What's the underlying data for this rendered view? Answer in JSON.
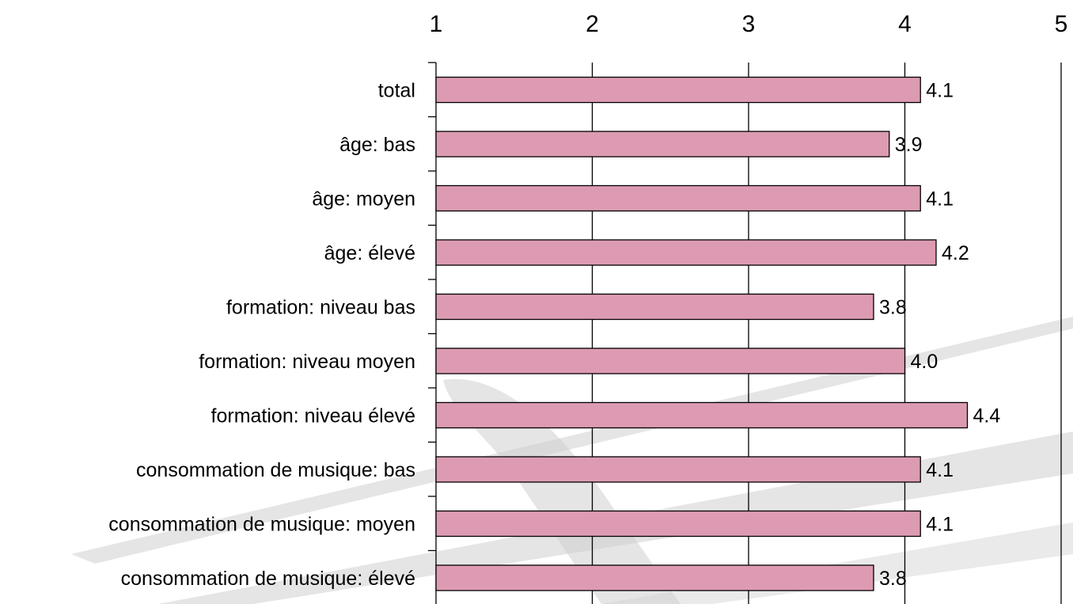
{
  "chart_data": {
    "type": "bar",
    "orientation": "horizontal",
    "title": "",
    "xlabel": "",
    "ylabel": "",
    "xlim": [
      1,
      5
    ],
    "x_ticks": [
      "1",
      "2",
      "3",
      "4",
      "5"
    ],
    "x_axis_position": "top",
    "grid": true,
    "categories": [
      "total",
      "âge: bas",
      "âge: moyen",
      "âge: élevé",
      "formation: niveau bas",
      "formation: niveau moyen",
      "formation: niveau élevé",
      "consommation de musique: bas",
      "consommation de musique: moyen",
      "consommation de musique: élevé"
    ],
    "values": [
      4.1,
      3.9,
      4.1,
      4.2,
      3.8,
      4.0,
      4.4,
      4.1,
      4.1,
      3.8
    ],
    "value_labels": [
      "4.1",
      "3.9",
      "4.1",
      "4.2",
      "3.8",
      "4.0",
      "4.4",
      "4.1",
      "4.1",
      "3.8"
    ],
    "colors": {
      "bar": "#dd9bb3",
      "bar_stroke": "#000000",
      "watermark": "#d0d0d0"
    }
  }
}
